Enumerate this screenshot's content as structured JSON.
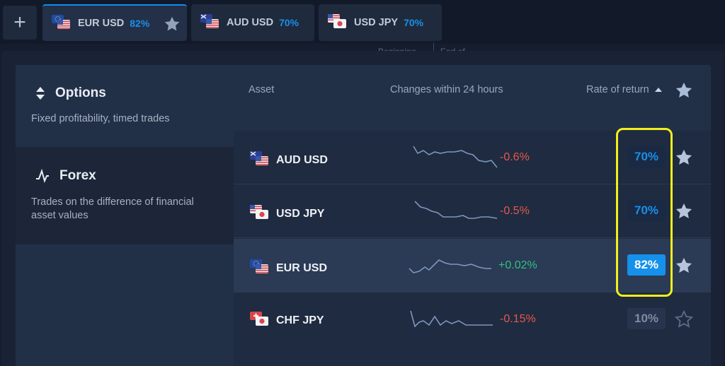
{
  "tabs": {
    "add_label": "+",
    "items": [
      {
        "name": "EUR USD",
        "rate": "82%",
        "active": true
      },
      {
        "name": "AUD USD",
        "rate": "70%",
        "active": false
      },
      {
        "name": "USD JPY",
        "rate": "70%",
        "active": false
      }
    ]
  },
  "background": {
    "text_left": "Beginning",
    "text_right": "End of"
  },
  "sidebar": {
    "categories": [
      {
        "title": "Options",
        "desc": "Fixed profitability, timed trades",
        "icon": "up-down-arrows-icon",
        "selected": true
      },
      {
        "title": "Forex",
        "desc": "Trades on the difference of financial asset values",
        "icon": "trend-line-icon",
        "selected": false
      }
    ]
  },
  "table": {
    "headers": {
      "asset": "Asset",
      "change": "Changes within 24 hours",
      "rate": "Rate of return"
    },
    "rows": [
      {
        "asset": "AUD USD",
        "change": "-0.6%",
        "direction": "down",
        "rate": "70%",
        "highlighted": false,
        "starred": true,
        "flag": "au-us"
      },
      {
        "asset": "USD JPY",
        "change": "-0.5%",
        "direction": "down",
        "rate": "70%",
        "highlighted": false,
        "starred": true,
        "flag": "us-jp"
      },
      {
        "asset": "EUR USD",
        "change": "+0.02%",
        "direction": "up",
        "rate": "82%",
        "highlighted": true,
        "starred": true,
        "flag": "eu-us"
      },
      {
        "asset": "CHF JPY",
        "change": "-0.15%",
        "direction": "down",
        "rate": "10%",
        "highlighted": false,
        "starred": false,
        "flag": "ch-jp"
      }
    ]
  },
  "colors": {
    "accent": "#1591ec",
    "negative": "#e5584e",
    "positive": "#2ec27e",
    "annotation": "#f2ee1d"
  }
}
